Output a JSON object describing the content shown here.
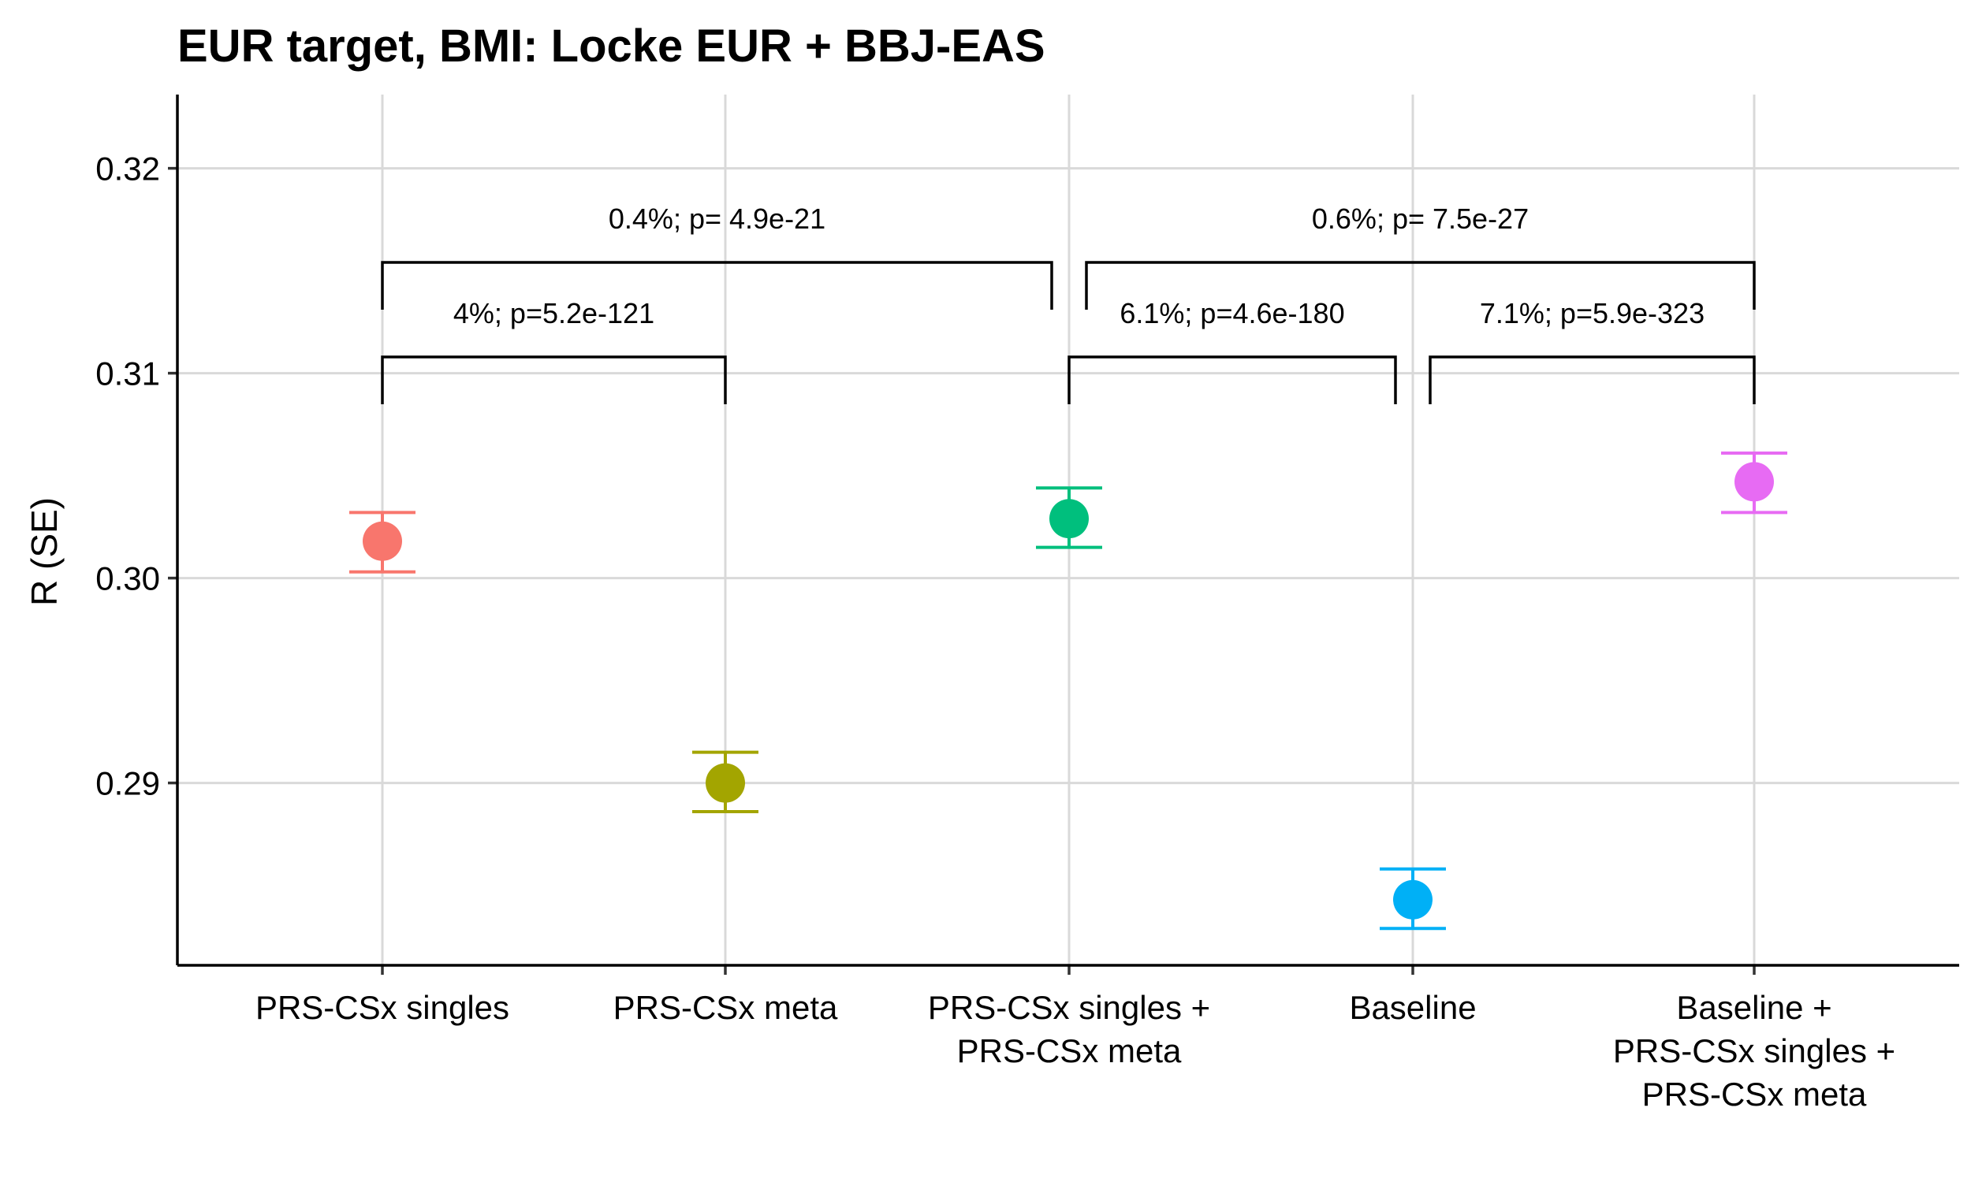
{
  "chart_data": {
    "type": "scatter",
    "title": "EUR target, BMI: Locke EUR + BBJ-EAS",
    "xlabel": "",
    "ylabel": "R (SE)",
    "ylim": [
      0.2811,
      0.3236
    ],
    "yticks": [
      0.29,
      0.3,
      0.31,
      0.32
    ],
    "ytick_labels": [
      "0.29",
      "0.30",
      "0.31",
      "0.32"
    ],
    "grid": true,
    "legend": "none",
    "categories": [
      [
        "PRS-CSx singles"
      ],
      [
        "PRS-CSx meta"
      ],
      [
        "PRS-CSx singles +",
        "PRS-CSx meta"
      ],
      [
        "Baseline"
      ],
      [
        "Baseline +",
        "PRS-CSx singles +",
        "PRS-CSx meta"
      ]
    ],
    "points": [
      {
        "value": 0.3018,
        "lower": 0.3003,
        "upper": 0.3032,
        "color": "#F8766D"
      },
      {
        "value": 0.29,
        "lower": 0.2886,
        "upper": 0.2915,
        "color": "#A3A500"
      },
      {
        "value": 0.3029,
        "lower": 0.3015,
        "upper": 0.3044,
        "color": "#00BF7D"
      },
      {
        "value": 0.2843,
        "lower": 0.2829,
        "upper": 0.2858,
        "color": "#00B0F6"
      },
      {
        "value": 0.3047,
        "lower": 0.3032,
        "upper": 0.3061,
        "color": "#E76BF3"
      }
    ],
    "comparisons": [
      {
        "from": 0,
        "to": 1,
        "label": "4%; p=5.2e-121",
        "level": 1
      },
      {
        "from": 2,
        "to": 3,
        "label": "6.1%; p=4.6e-180",
        "level": 1
      },
      {
        "from": 3,
        "to": 4,
        "label": "7.1%; p=5.9e-323",
        "level": 1
      },
      {
        "from": 0,
        "to": 2,
        "label": "0.4%; p= 4.9e-21",
        "level": 2
      },
      {
        "from": 2,
        "to": 4,
        "label": "0.6%; p= 7.5e-27",
        "level": 2
      }
    ]
  }
}
